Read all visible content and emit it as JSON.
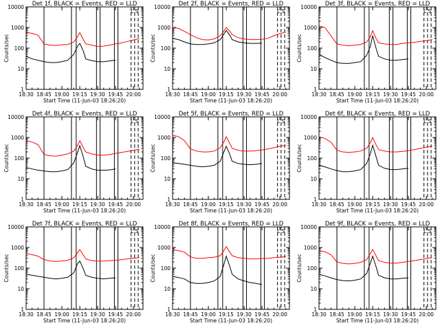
{
  "figure": {
    "ylabel": "Counts/sec",
    "xlabel": "Start Time (11-Jun-03 18:26:20)",
    "x_tick_labels": [
      "18:30",
      "18:45",
      "19:00",
      "19:15",
      "19:30",
      "19:45",
      "20:00"
    ],
    "y_tick_labels": [
      "1",
      "10",
      "100",
      "1000",
      "10000"
    ],
    "colors": {
      "events": "#000000",
      "lld": "#ff0000"
    }
  },
  "chart_data": [
    {
      "type": "line",
      "title": "Det  1f, BLACK = Events, RED = LLD",
      "corner_label": "L S",
      "xlabel": "Start Time (11-Jun-03 18:26:20)",
      "ylabel": "Counts/sec",
      "x_range": [
        "18:30",
        "20:08"
      ],
      "ylim": [
        1,
        10000
      ],
      "y_scale": "log",
      "x": [
        "18:30",
        "18:35",
        "18:40",
        "18:45",
        "18:50",
        "18:55",
        "19:00",
        "19:05",
        "19:10",
        "19:13",
        "19:15",
        "19:18",
        "19:20",
        "19:25",
        "19:30",
        "19:35",
        "19:40",
        "19:45",
        "19:50",
        "19:55",
        "20:00",
        "20:05"
      ],
      "series": [
        {
          "name": "LLD",
          "color": "#ff0000",
          "values": [
            580,
            520,
            420,
            160,
            140,
            135,
            145,
            150,
            200,
            350,
            560,
            260,
            160,
            140,
            120,
            125,
            140,
            160,
            180,
            210,
            250,
            290
          ]
        },
        {
          "name": "Events",
          "color": "#000000",
          "values": [
            40,
            30,
            26,
            22,
            20,
            20,
            22,
            26,
            50,
            120,
            170,
            70,
            30,
            25,
            22,
            22,
            24,
            26,
            null,
            null,
            null,
            null
          ]
        }
      ]
    },
    {
      "type": "line",
      "title": "Det  2f, BLACK = Events, RED = LLD",
      "corner_label": "L S",
      "xlabel": "Start Time (11-Jun-03 18:26:20)",
      "ylabel": "Counts/sec",
      "x_range": [
        "18:30",
        "20:08"
      ],
      "ylim": [
        1,
        10000
      ],
      "y_scale": "log",
      "x": [
        "18:30",
        "18:35",
        "18:40",
        "18:45",
        "18:50",
        "18:55",
        "19:00",
        "19:05",
        "19:10",
        "19:13",
        "19:15",
        "19:18",
        "19:20",
        "19:25",
        "19:30",
        "19:35",
        "19:40",
        "19:45",
        "19:50",
        "19:55",
        "20:00",
        "20:05"
      ],
      "series": [
        {
          "name": "LLD",
          "color": "#ff0000",
          "values": [
            1000,
            900,
            650,
            450,
            320,
            260,
            250,
            280,
            400,
            650,
            1000,
            650,
            450,
            320,
            280,
            260,
            260,
            270,
            300,
            400,
            500,
            600
          ]
        },
        {
          "name": "Events",
          "color": "#000000",
          "values": [
            300,
            260,
            200,
            160,
            150,
            150,
            160,
            180,
            260,
            480,
            720,
            420,
            260,
            200,
            180,
            170,
            170,
            175,
            null,
            null,
            null,
            null
          ]
        }
      ]
    },
    {
      "type": "line",
      "title": "Det  3f, BLACK = Events, RED = LLD",
      "corner_label": "L S",
      "xlabel": "Start Time (11-Jun-03 18:26:20)",
      "ylabel": "Counts/sec",
      "x_range": [
        "18:30",
        "20:08"
      ],
      "ylim": [
        1,
        10000
      ],
      "y_scale": "log",
      "x": [
        "18:30",
        "18:35",
        "18:40",
        "18:45",
        "18:50",
        "18:55",
        "19:00",
        "19:05",
        "19:10",
        "19:13",
        "19:15",
        "19:18",
        "19:20",
        "19:25",
        "19:30",
        "19:35",
        "19:40",
        "19:45",
        "19:50",
        "19:55",
        "20:00",
        "20:05"
      ],
      "series": [
        {
          "name": "LLD",
          "color": "#ff0000",
          "values": [
            1200,
            1000,
            400,
            160,
            140,
            130,
            140,
            150,
            200,
            350,
            700,
            280,
            180,
            160,
            150,
            150,
            170,
            180,
            190,
            210,
            230,
            260
          ]
        },
        {
          "name": "Events",
          "color": "#000000",
          "values": [
            50,
            35,
            26,
            20,
            18,
            18,
            20,
            22,
            45,
            120,
            400,
            90,
            40,
            30,
            26,
            26,
            28,
            30,
            null,
            null,
            null,
            null
          ]
        }
      ]
    },
    {
      "type": "line",
      "title": "Det  4f, BLACK = Events, RED = LLD",
      "corner_label": "L S",
      "xlabel": "Start Time (11-Jun-03 18:26:20)",
      "ylabel": "Counts/sec",
      "x_range": [
        "18:30",
        "20:08"
      ],
      "ylim": [
        1,
        10000
      ],
      "y_scale": "log",
      "x": [
        "18:30",
        "18:35",
        "18:40",
        "18:45",
        "18:50",
        "18:55",
        "19:00",
        "19:05",
        "19:10",
        "19:13",
        "19:15",
        "19:18",
        "19:20",
        "19:25",
        "19:30",
        "19:35",
        "19:40",
        "19:45",
        "19:50",
        "19:55",
        "20:00",
        "20:05"
      ],
      "series": [
        {
          "name": "LLD",
          "color": "#ff0000",
          "values": [
            700,
            600,
            450,
            150,
            130,
            125,
            140,
            160,
            220,
            400,
            700,
            320,
            200,
            160,
            140,
            140,
            150,
            170,
            190,
            210,
            240,
            270
          ]
        },
        {
          "name": "Events",
          "color": "#000000",
          "values": [
            35,
            30,
            26,
            24,
            22,
            22,
            24,
            28,
            60,
            180,
            400,
            110,
            40,
            30,
            26,
            26,
            27,
            30,
            null,
            null,
            null,
            null
          ]
        }
      ]
    },
    {
      "type": "line",
      "title": "Det  5f, BLACK = Events, RED = LLD",
      "corner_label": "L S",
      "xlabel": "Start Time (11-Jun-03 18:26:20)",
      "ylabel": "Counts/sec",
      "x_range": [
        "18:30",
        "20:08"
      ],
      "ylim": [
        1,
        10000
      ],
      "y_scale": "log",
      "x": [
        "18:30",
        "18:35",
        "18:40",
        "18:45",
        "18:50",
        "18:55",
        "19:00",
        "19:05",
        "19:10",
        "19:13",
        "19:15",
        "19:18",
        "19:20",
        "19:25",
        "19:30",
        "19:35",
        "19:40",
        "19:45",
        "19:50",
        "19:55",
        "20:00",
        "20:05"
      ],
      "series": [
        {
          "name": "LLD",
          "color": "#ff0000",
          "values": [
            1300,
            1100,
            700,
            280,
            220,
            200,
            200,
            220,
            320,
            600,
            1100,
            500,
            300,
            240,
            220,
            220,
            230,
            250,
            280,
            320,
            380,
            420
          ]
        },
        {
          "name": "Events",
          "color": "#000000",
          "values": [
            60,
            55,
            50,
            45,
            40,
            38,
            40,
            45,
            70,
            200,
            380,
            150,
            70,
            55,
            50,
            48,
            50,
            55,
            null,
            null,
            null,
            null
          ]
        }
      ]
    },
    {
      "type": "line",
      "title": "Det  6f, BLACK = Events, RED = LLD",
      "corner_label": "L S",
      "xlabel": "Start Time (11-Jun-03 18:26:20)",
      "ylabel": "Counts/sec",
      "x_range": [
        "18:30",
        "20:08"
      ],
      "ylim": [
        1,
        10000
      ],
      "y_scale": "log",
      "x": [
        "18:30",
        "18:35",
        "18:40",
        "18:45",
        "18:50",
        "18:55",
        "19:00",
        "19:05",
        "19:10",
        "19:13",
        "19:15",
        "19:18",
        "19:20",
        "19:25",
        "19:30",
        "19:35",
        "19:40",
        "19:45",
        "19:50",
        "19:55",
        "20:00",
        "20:05"
      ],
      "series": [
        {
          "name": "LLD",
          "color": "#ff0000",
          "values": [
            1100,
            900,
            600,
            240,
            200,
            190,
            200,
            220,
            300,
            550,
            1000,
            420,
            260,
            220,
            200,
            200,
            210,
            230,
            260,
            300,
            340,
            380
          ]
        },
        {
          "name": "Events",
          "color": "#000000",
          "values": [
            45,
            38,
            30,
            25,
            22,
            22,
            24,
            28,
            55,
            160,
            420,
            110,
            45,
            32,
            28,
            28,
            30,
            32,
            null,
            null,
            null,
            null
          ]
        }
      ]
    },
    {
      "type": "line",
      "title": "Det  7f, BLACK = Events, RED = LLD",
      "corner_label": "L S",
      "xlabel": "Start Time (11-Jun-03 18:26:20)",
      "ylabel": "Counts/sec",
      "x_range": [
        "18:30",
        "20:08"
      ],
      "ylim": [
        1,
        10000
      ],
      "y_scale": "log",
      "x": [
        "18:30",
        "18:35",
        "18:40",
        "18:45",
        "18:50",
        "18:55",
        "19:00",
        "19:05",
        "19:10",
        "19:13",
        "19:15",
        "19:18",
        "19:20",
        "19:25",
        "19:30",
        "19:35",
        "19:40",
        "19:45",
        "19:50",
        "19:55",
        "20:00",
        "20:05"
      ],
      "series": [
        {
          "name": "LLD",
          "color": "#ff0000",
          "values": [
            500,
            450,
            380,
            260,
            220,
            210,
            220,
            240,
            320,
            550,
            800,
            420,
            280,
            230,
            220,
            220,
            230,
            240,
            260,
            280,
            300,
            320
          ]
        },
        {
          "name": "Events",
          "color": "#000000",
          "values": [
            50,
            45,
            40,
            36,
            32,
            30,
            32,
            36,
            60,
            160,
            220,
            90,
            45,
            36,
            32,
            30,
            32,
            34,
            null,
            null,
            null,
            null
          ]
        }
      ]
    },
    {
      "type": "line",
      "title": "Det  8f, BLACK = Events, RED = LLD",
      "corner_label": "L S",
      "xlabel": "Start Time (11-Jun-03 18:26:20)",
      "ylabel": "Counts/sec",
      "x_range": [
        "18:30",
        "20:08"
      ],
      "ylim": [
        1,
        10000
      ],
      "y_scale": "log",
      "x": [
        "18:30",
        "18:35",
        "18:40",
        "18:45",
        "18:50",
        "18:55",
        "19:00",
        "19:05",
        "19:10",
        "19:13",
        "19:15",
        "19:18",
        "19:20",
        "19:25",
        "19:30",
        "19:35",
        "19:40",
        "19:45",
        "19:50",
        "19:55",
        "20:00",
        "20:05"
      ],
      "series": [
        {
          "name": "LLD",
          "color": "#ff0000",
          "values": [
            800,
            700,
            600,
            350,
            300,
            300,
            320,
            340,
            400,
            700,
            1100,
            600,
            400,
            320,
            300,
            280,
            280,
            290,
            300,
            320,
            340,
            360
          ]
        },
        {
          "name": "Events",
          "color": "#000000",
          "values": [
            40,
            35,
            30,
            20,
            18,
            18,
            20,
            24,
            40,
            150,
            380,
            120,
            50,
            30,
            24,
            20,
            18,
            16,
            null,
            null,
            null,
            null
          ]
        }
      ]
    },
    {
      "type": "line",
      "title": "Det  9f, BLACK = Events, RED = LLD",
      "corner_label": "L S",
      "xlabel": "Start Time (11-Jun-03 18:26:20)",
      "ylabel": "Counts/sec",
      "x_range": [
        "18:30",
        "20:08"
      ],
      "ylim": [
        1,
        10000
      ],
      "y_scale": "log",
      "x": [
        "18:30",
        "18:35",
        "18:40",
        "18:45",
        "18:50",
        "18:55",
        "19:00",
        "19:05",
        "19:10",
        "19:13",
        "19:15",
        "19:18",
        "19:20",
        "19:25",
        "19:30",
        "19:35",
        "19:40",
        "19:45",
        "19:50",
        "19:55",
        "20:00",
        "20:05"
      ],
      "series": [
        {
          "name": "LLD",
          "color": "#ff0000",
          "values": [
            700,
            620,
            450,
            200,
            170,
            160,
            170,
            190,
            260,
            500,
            800,
            380,
            230,
            190,
            175,
            175,
            190,
            210,
            230,
            260,
            290,
            320
          ]
        },
        {
          "name": "Events",
          "color": "#000000",
          "values": [
            50,
            42,
            34,
            28,
            25,
            24,
            26,
            30,
            55,
            170,
            380,
            110,
            45,
            34,
            30,
            30,
            32,
            34,
            null,
            null,
            null,
            null
          ]
        }
      ]
    }
  ]
}
